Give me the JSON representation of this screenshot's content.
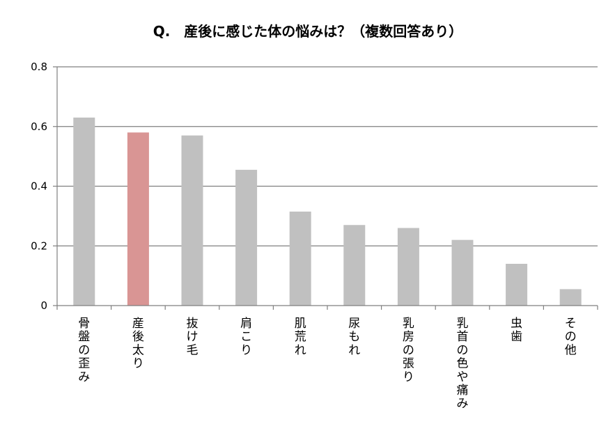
{
  "chart_data": {
    "type": "bar",
    "title": "Q.　産後に感じた体の悩みは？（複数回答あり）",
    "xlabel": "",
    "ylabel": "",
    "ylim": [
      0,
      0.8
    ],
    "yticks": [
      "0",
      "0.2",
      "0.4",
      "0.6",
      "0.8"
    ],
    "grid": true,
    "categories": [
      "骨盤の歪み",
      "産後太り",
      "抜け毛",
      "肩こり",
      "肌荒れ",
      "尿もれ",
      "乳房の張り",
      "乳首の色や痛み",
      "虫歯",
      "その他"
    ],
    "values": [
      0.63,
      0.58,
      0.57,
      0.455,
      0.315,
      0.27,
      0.26,
      0.22,
      0.14,
      0.055
    ],
    "highlight_index": 1,
    "colors": {
      "bar": "#c0c0c0",
      "highlight": "#d99594",
      "grid": "#7f7f7f",
      "axis": "#7f7f7f"
    }
  }
}
